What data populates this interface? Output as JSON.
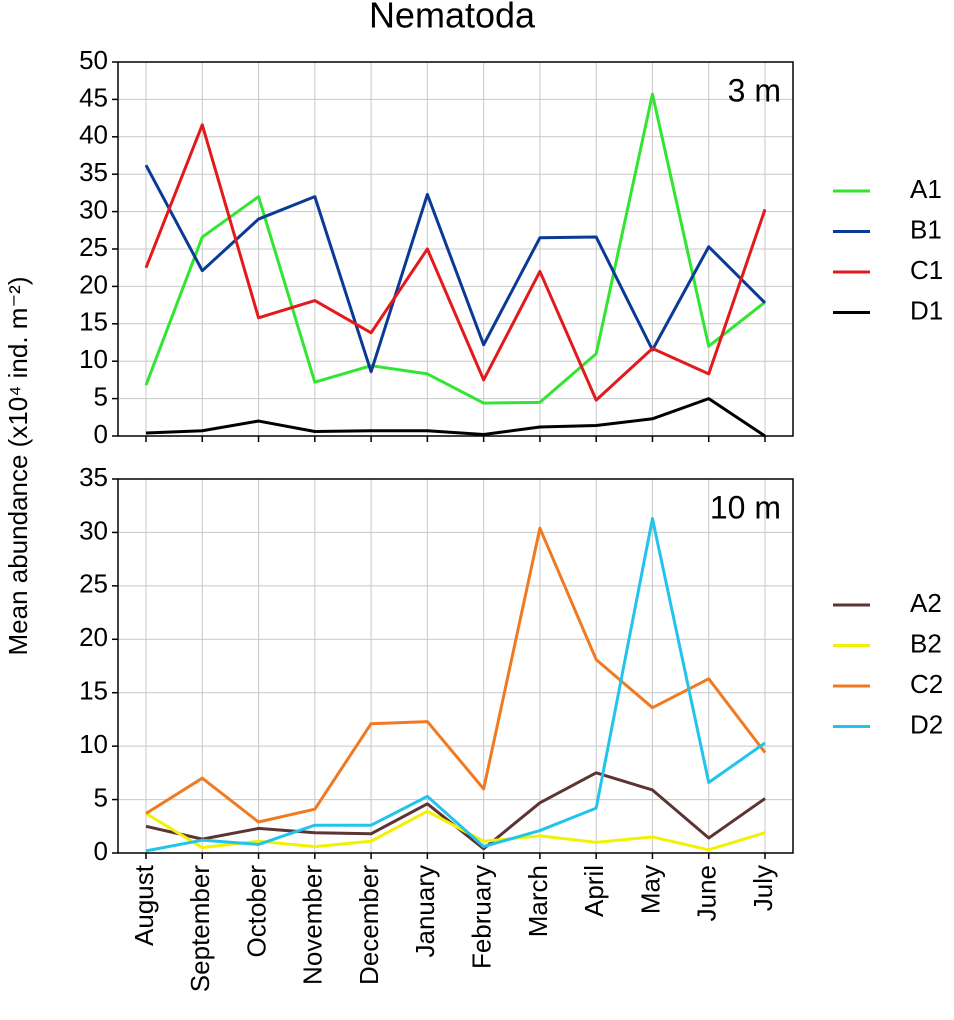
{
  "chart_data": [
    {
      "type": "line",
      "title": "Nematoda",
      "y_label": "Mean abundance (x10⁴ ind. m⁻²)",
      "annotation": "3 m",
      "ylim": [
        0,
        50
      ],
      "yticks": [
        0,
        5,
        10,
        15,
        20,
        25,
        30,
        35,
        40,
        45,
        50
      ],
      "grid": true,
      "legend": "right",
      "series": [
        {
          "name": "A1",
          "color": "#33e533",
          "values": [
            6.8,
            26.6,
            32,
            7.2,
            9.4,
            8.3,
            4.4,
            4.5,
            11,
            45.7,
            12,
            17.9
          ]
        },
        {
          "name": "B1",
          "color": "#0a3a96",
          "values": [
            36.2,
            22.1,
            29,
            32,
            8.6,
            32.3,
            12.2,
            26.5,
            26.6,
            11.5,
            25.3,
            17.8
          ]
        },
        {
          "name": "C1",
          "color": "#e31a1c",
          "values": [
            22.5,
            41.6,
            15.8,
            18.1,
            13.8,
            25,
            7.5,
            22,
            4.8,
            11.7,
            8.3,
            30.3
          ]
        },
        {
          "name": "D1",
          "color": "#000000",
          "values": [
            0.4,
            0.7,
            2,
            0.6,
            0.7,
            0.7,
            0.2,
            1.2,
            1.4,
            2.3,
            5,
            0
          ]
        }
      ]
    },
    {
      "type": "line",
      "annotation": "10 m",
      "categories": [
        "August",
        "September",
        "October",
        "November",
        "December",
        "January",
        "February",
        "March",
        "April",
        "May",
        "June",
        "July"
      ],
      "ylim": [
        0,
        35
      ],
      "yticks": [
        0,
        5,
        10,
        15,
        20,
        25,
        30,
        35
      ],
      "grid": true,
      "legend": "right",
      "series": [
        {
          "name": "A2",
          "color": "#5c3434",
          "values": [
            2.5,
            1.3,
            2.3,
            1.9,
            1.8,
            4.6,
            0.4,
            4.7,
            7.5,
            5.9,
            1.4,
            5.1
          ]
        },
        {
          "name": "B2",
          "color": "#f2f200",
          "values": [
            3.7,
            0.5,
            1.1,
            0.6,
            1.1,
            3.9,
            1.1,
            1.6,
            1.0,
            1.5,
            0.3,
            1.9
          ]
        },
        {
          "name": "C2",
          "color": "#f07a22",
          "values": [
            3.7,
            7.0,
            2.9,
            4.1,
            12.1,
            12.3,
            6.0,
            30.4,
            18.1,
            13.6,
            16.3,
            9.4
          ]
        },
        {
          "name": "D2",
          "color": "#22c4ec",
          "values": [
            0.2,
            1.2,
            0.8,
            2.6,
            2.6,
            5.3,
            0.6,
            2.1,
            4.2,
            31.3,
            6.6,
            10.3
          ]
        }
      ]
    }
  ]
}
